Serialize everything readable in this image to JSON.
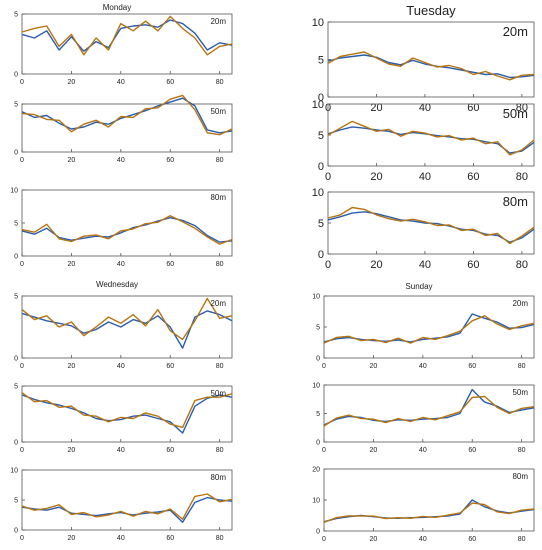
{
  "chart_data": [
    {
      "type": "line",
      "day_title": "Monday",
      "height_label": "20m",
      "xlim": [
        0,
        85
      ],
      "ylim": [
        0,
        5
      ],
      "x_ticks": [
        0,
        20,
        40,
        60,
        80
      ],
      "y_ticks": [
        0,
        5
      ],
      "x": [
        0,
        5,
        10,
        15,
        20,
        25,
        30,
        35,
        40,
        45,
        50,
        55,
        60,
        65,
        70,
        75,
        80,
        85
      ],
      "series": [
        {
          "color": "#2a5db0",
          "values": [
            3.3,
            3.0,
            3.6,
            2.0,
            3.1,
            1.9,
            2.7,
            2.2,
            3.8,
            4.0,
            4.1,
            3.9,
            4.5,
            4.2,
            3.4,
            2.0,
            2.6,
            2.4
          ]
        },
        {
          "color": "#b8740f",
          "values": [
            3.5,
            3.8,
            4.0,
            2.3,
            3.3,
            1.6,
            3.0,
            2.0,
            4.2,
            3.6,
            4.4,
            3.6,
            4.8,
            3.8,
            3.0,
            1.6,
            2.3,
            2.5
          ]
        }
      ]
    },
    {
      "type": "line",
      "day_title": "Tuesday",
      "height_label": "20m",
      "xlim": [
        0,
        85
      ],
      "ylim": [
        0,
        10
      ],
      "x_ticks": [
        0,
        20,
        40,
        60,
        80
      ],
      "y_ticks": [
        0,
        5,
        10
      ],
      "x": [
        0,
        5,
        10,
        15,
        20,
        25,
        30,
        35,
        40,
        45,
        50,
        55,
        60,
        65,
        70,
        75,
        80,
        85
      ],
      "series": [
        {
          "color": "#2a5db0",
          "values": [
            4.8,
            5.2,
            5.4,
            5.6,
            5.3,
            4.6,
            4.3,
            4.9,
            4.4,
            4.1,
            3.9,
            3.6,
            3.3,
            3.0,
            3.1,
            2.6,
            2.7,
            2.9
          ]
        },
        {
          "color": "#b8740f",
          "values": [
            4.5,
            5.4,
            5.7,
            6.0,
            5.2,
            4.4,
            4.1,
            5.2,
            4.6,
            4.0,
            4.2,
            3.8,
            3.0,
            3.4,
            2.8,
            2.3,
            2.9,
            3.0
          ]
        }
      ]
    },
    {
      "type": "line",
      "day_title": "",
      "height_label": "50m",
      "xlim": [
        0,
        85
      ],
      "ylim": [
        0,
        5
      ],
      "x_ticks": [
        0,
        20,
        40,
        60,
        80
      ],
      "y_ticks": [
        0,
        5
      ],
      "x": [
        0,
        5,
        10,
        15,
        20,
        25,
        30,
        35,
        40,
        45,
        50,
        55,
        60,
        65,
        70,
        75,
        80,
        85
      ],
      "series": [
        {
          "color": "#2a5db0",
          "values": [
            4.2,
            3.6,
            3.8,
            3.0,
            2.4,
            2.6,
            3.1,
            2.9,
            3.5,
            3.9,
            4.3,
            4.8,
            5.2,
            5.6,
            4.8,
            2.3,
            2.0,
            2.2
          ]
        },
        {
          "color": "#b8740f",
          "values": [
            4.0,
            3.9,
            3.4,
            3.3,
            2.1,
            2.9,
            3.3,
            2.6,
            3.7,
            3.6,
            4.5,
            4.6,
            5.5,
            5.9,
            4.4,
            2.0,
            1.8,
            2.4
          ]
        }
      ]
    },
    {
      "type": "line",
      "day_title": "",
      "height_label": "50m",
      "xlim": [
        0,
        85
      ],
      "ylim": [
        0,
        10
      ],
      "x_ticks": [
        0,
        20,
        40,
        60,
        80
      ],
      "y_ticks": [
        0,
        5,
        10
      ],
      "x": [
        0,
        5,
        10,
        15,
        20,
        25,
        30,
        35,
        40,
        45,
        50,
        55,
        60,
        65,
        70,
        75,
        80,
        85
      ],
      "series": [
        {
          "color": "#2a5db0",
          "values": [
            5.2,
            5.8,
            6.3,
            6.1,
            5.8,
            5.6,
            5.1,
            5.4,
            5.2,
            4.9,
            4.7,
            4.4,
            4.3,
            3.9,
            3.6,
            2.1,
            2.4,
            3.8
          ]
        },
        {
          "color": "#b8740f",
          "values": [
            5.0,
            6.1,
            7.2,
            6.4,
            5.6,
            5.9,
            4.8,
            5.6,
            5.3,
            4.7,
            4.9,
            4.2,
            4.5,
            3.6,
            3.9,
            1.8,
            2.6,
            4.2
          ]
        }
      ]
    },
    {
      "type": "line",
      "day_title": "",
      "height_label": "80m",
      "xlim": [
        0,
        85
      ],
      "ylim": [
        0,
        10
      ],
      "x_ticks": [
        0,
        20,
        40,
        60,
        80
      ],
      "y_ticks": [
        0,
        5,
        10
      ],
      "x": [
        0,
        5,
        10,
        15,
        20,
        25,
        30,
        35,
        40,
        45,
        50,
        55,
        60,
        65,
        70,
        75,
        80,
        85
      ],
      "series": [
        {
          "color": "#2a5db0",
          "values": [
            3.8,
            3.3,
            4.2,
            2.8,
            2.4,
            2.7,
            3.0,
            2.9,
            3.5,
            4.3,
            4.7,
            5.3,
            5.8,
            5.4,
            4.6,
            3.1,
            2.1,
            2.3
          ]
        },
        {
          "color": "#b8740f",
          "values": [
            4.0,
            3.6,
            4.8,
            2.6,
            2.2,
            3.0,
            3.2,
            2.6,
            3.8,
            4.1,
            4.9,
            5.1,
            6.1,
            5.2,
            4.2,
            2.9,
            1.8,
            2.5
          ]
        }
      ]
    },
    {
      "type": "line",
      "day_title": "",
      "height_label": "80m",
      "xlim": [
        0,
        85
      ],
      "ylim": [
        0,
        10
      ],
      "x_ticks": [
        0,
        20,
        40,
        60,
        80
      ],
      "y_ticks": [
        0,
        5,
        10
      ],
      "x": [
        0,
        5,
        10,
        15,
        20,
        25,
        30,
        35,
        40,
        45,
        50,
        55,
        60,
        65,
        70,
        75,
        80,
        85
      ],
      "series": [
        {
          "color": "#2a5db0",
          "values": [
            5.5,
            6.0,
            6.6,
            6.8,
            6.5,
            6.0,
            5.5,
            5.3,
            5.0,
            4.9,
            4.5,
            4.0,
            3.8,
            3.2,
            3.0,
            1.9,
            2.6,
            4.0
          ]
        },
        {
          "color": "#b8740f",
          "values": [
            5.8,
            6.3,
            7.5,
            7.2,
            6.3,
            5.7,
            5.3,
            5.6,
            5.2,
            4.6,
            4.7,
            3.8,
            4.0,
            3.0,
            3.3,
            1.7,
            2.9,
            4.3
          ]
        }
      ]
    },
    {
      "type": "line",
      "day_title": "Wednesday",
      "height_label": "20m",
      "xlim": [
        0,
        85
      ],
      "ylim": [
        0,
        5
      ],
      "x_ticks": [
        0,
        20,
        40,
        60,
        80
      ],
      "y_ticks": [
        0,
        5
      ],
      "x": [
        0,
        5,
        10,
        15,
        20,
        25,
        30,
        35,
        40,
        45,
        50,
        55,
        60,
        65,
        70,
        75,
        80,
        85
      ],
      "series": [
        {
          "color": "#2a5db0",
          "values": [
            3.6,
            3.3,
            3.0,
            2.8,
            2.6,
            2.0,
            2.3,
            2.9,
            2.5,
            3.1,
            2.8,
            3.4,
            2.5,
            0.8,
            3.3,
            3.8,
            3.5,
            3.0
          ]
        },
        {
          "color": "#b8740f",
          "values": [
            3.9,
            3.1,
            3.4,
            2.5,
            2.9,
            1.8,
            2.5,
            3.3,
            2.8,
            3.5,
            2.6,
            3.9,
            2.2,
            1.5,
            3.0,
            4.8,
            3.2,
            3.4
          ]
        }
      ]
    },
    {
      "type": "line",
      "day_title": "Sunday",
      "height_label": "20m",
      "xlim": [
        0,
        85
      ],
      "ylim": [
        0,
        10
      ],
      "x_ticks": [
        0,
        20,
        40,
        60,
        80
      ],
      "y_ticks": [
        0,
        5,
        10
      ],
      "x": [
        0,
        5,
        10,
        15,
        20,
        25,
        30,
        35,
        40,
        45,
        50,
        55,
        60,
        65,
        70,
        75,
        80,
        85
      ],
      "series": [
        {
          "color": "#2a5db0",
          "values": [
            2.6,
            3.1,
            3.3,
            3.0,
            2.8,
            2.7,
            2.9,
            2.6,
            3.0,
            3.2,
            3.4,
            4.0,
            7.1,
            6.4,
            5.8,
            4.8,
            4.9,
            5.4
          ]
        },
        {
          "color": "#b8740f",
          "values": [
            2.4,
            3.3,
            3.5,
            2.8,
            3.0,
            2.5,
            3.2,
            2.4,
            3.3,
            3.0,
            3.6,
            4.3,
            6.0,
            6.8,
            5.5,
            4.6,
            5.2,
            5.6
          ]
        }
      ]
    },
    {
      "type": "line",
      "day_title": "",
      "height_label": "50m",
      "xlim": [
        0,
        85
      ],
      "ylim": [
        0,
        5
      ],
      "x_ticks": [
        0,
        20,
        40,
        60,
        80
      ],
      "y_ticks": [
        0,
        5
      ],
      "x": [
        0,
        5,
        10,
        15,
        20,
        25,
        30,
        35,
        40,
        45,
        50,
        55,
        60,
        65,
        70,
        75,
        80,
        85
      ],
      "series": [
        {
          "color": "#2a5db0",
          "values": [
            4.2,
            3.8,
            3.5,
            3.3,
            3.0,
            2.6,
            2.1,
            1.9,
            2.0,
            2.3,
            2.4,
            2.1,
            1.8,
            0.8,
            3.2,
            3.9,
            4.2,
            4.0
          ]
        },
        {
          "color": "#b8740f",
          "values": [
            4.4,
            3.6,
            3.7,
            3.1,
            3.2,
            2.4,
            2.3,
            1.8,
            2.2,
            2.1,
            2.6,
            2.3,
            1.6,
            1.3,
            3.7,
            4.0,
            4.0,
            4.3
          ]
        }
      ]
    },
    {
      "type": "line",
      "day_title": "",
      "height_label": "50m",
      "xlim": [
        0,
        85
      ],
      "ylim": [
        0,
        10
      ],
      "x_ticks": [
        0,
        20,
        40,
        60,
        80
      ],
      "y_ticks": [
        0,
        5,
        10
      ],
      "x": [
        0,
        5,
        10,
        15,
        20,
        25,
        30,
        35,
        40,
        45,
        50,
        55,
        60,
        65,
        70,
        75,
        80,
        85
      ],
      "series": [
        {
          "color": "#2a5db0",
          "values": [
            3.0,
            4.0,
            4.5,
            4.3,
            3.8,
            3.6,
            3.9,
            3.8,
            4.0,
            4.1,
            4.3,
            5.0,
            9.2,
            7.0,
            6.3,
            5.2,
            5.6,
            6.0
          ]
        },
        {
          "color": "#b8740f",
          "values": [
            2.8,
            4.2,
            4.7,
            4.1,
            4.0,
            3.4,
            4.1,
            3.6,
            4.3,
            3.9,
            4.6,
            5.3,
            7.8,
            8.0,
            6.1,
            5.0,
            5.9,
            6.2
          ]
        }
      ]
    },
    {
      "type": "line",
      "day_title": "",
      "height_label": "80m",
      "xlim": [
        0,
        85
      ],
      "ylim": [
        0,
        10
      ],
      "x_ticks": [
        0,
        20,
        40,
        60,
        80
      ],
      "y_ticks": [
        0,
        5,
        10
      ],
      "x": [
        0,
        5,
        10,
        15,
        20,
        25,
        30,
        35,
        40,
        45,
        50,
        55,
        60,
        65,
        70,
        75,
        80,
        85
      ],
      "series": [
        {
          "color": "#2a5db0",
          "values": [
            3.8,
            3.5,
            3.3,
            3.8,
            2.8,
            2.6,
            2.4,
            2.7,
            2.9,
            2.5,
            2.8,
            3.0,
            3.3,
            1.3,
            4.6,
            5.4,
            5.0,
            4.8
          ]
        },
        {
          "color": "#b8740f",
          "values": [
            4.0,
            3.3,
            3.6,
            4.2,
            2.6,
            2.9,
            2.2,
            2.5,
            3.1,
            2.3,
            3.1,
            2.7,
            3.5,
            1.8,
            5.6,
            6.0,
            4.7,
            5.1
          ]
        }
      ]
    },
    {
      "type": "line",
      "day_title": "",
      "height_label": "80m",
      "xlim": [
        0,
        85
      ],
      "ylim": [
        0,
        20
      ],
      "x_ticks": [
        0,
        20,
        40,
        60,
        80
      ],
      "y_ticks": [
        0,
        10,
        20
      ],
      "x": [
        0,
        5,
        10,
        15,
        20,
        25,
        30,
        35,
        40,
        45,
        50,
        55,
        60,
        65,
        70,
        75,
        80,
        85
      ],
      "series": [
        {
          "color": "#2a5db0",
          "values": [
            3.0,
            4.0,
            4.6,
            5.0,
            4.6,
            4.2,
            4.1,
            4.3,
            4.4,
            4.6,
            4.8,
            5.5,
            10.0,
            7.8,
            6.5,
            5.8,
            6.4,
            6.9
          ]
        },
        {
          "color": "#b8740f",
          "values": [
            2.8,
            4.3,
            4.9,
            4.8,
            4.8,
            4.0,
            4.3,
            4.1,
            4.7,
            4.4,
            5.1,
            5.8,
            9.0,
            8.5,
            6.2,
            5.6,
            6.7,
            7.1
          ]
        }
      ]
    }
  ]
}
